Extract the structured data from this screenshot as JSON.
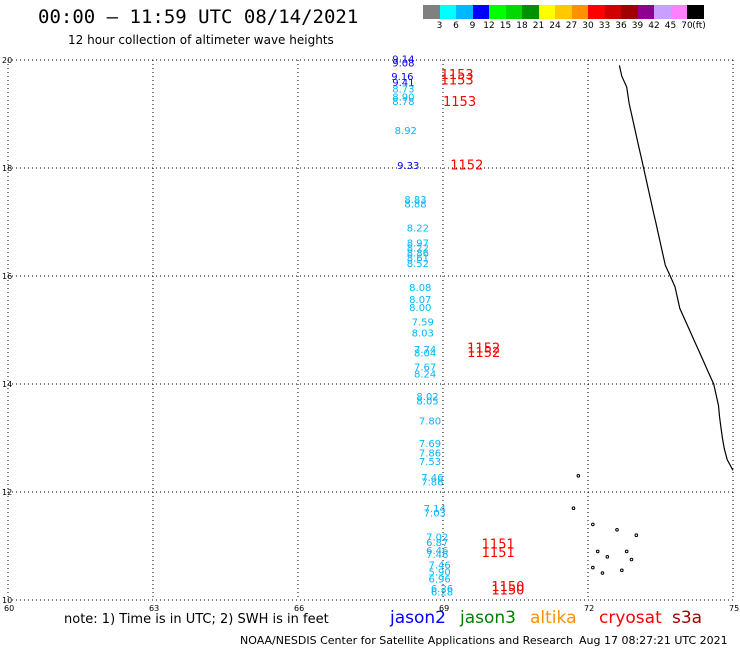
{
  "header": {
    "title": "00:00 – 11:59 UTC 08/14/2021",
    "subtitle": "12 hour collection of altimeter wave heights"
  },
  "legend": {
    "colors": [
      "#808080",
      "#00ffff",
      "#00b8ff",
      "#0000ff",
      "#00ff00",
      "#00d800",
      "#009000",
      "#ffff00",
      "#ffc800",
      "#ff9000",
      "#ff0000",
      "#d00000",
      "#a00000",
      "#900090",
      "#c8a0ff",
      "#ff80ff",
      "#000000"
    ],
    "labels": [
      "3",
      "6",
      "9",
      "12",
      "15",
      "18",
      "21",
      "24",
      "27",
      "30",
      "33",
      "36",
      "39",
      "42",
      "45",
      "70",
      "(ft)"
    ]
  },
  "axes": {
    "lat_labels": [
      "20",
      "18",
      "16",
      "14",
      "12",
      "10"
    ],
    "lon_labels": [
      "60",
      "63",
      "66",
      "69",
      "72",
      "75"
    ]
  },
  "chart_data": {
    "type": "scatter",
    "xlabel": "",
    "ylabel": "",
    "xlim": [
      60,
      75
    ],
    "ylim": [
      10,
      20
    ],
    "grid": true,
    "wave_heights": [
      {
        "lon": 67.95,
        "lat": 19.95,
        "value": "9.14",
        "color": "#0000ff"
      },
      {
        "lon": 67.95,
        "lat": 19.88,
        "value": "9.08",
        "color": "#0000ff"
      },
      {
        "lon": 67.93,
        "lat": 19.63,
        "value": "9.16",
        "color": "#0000ff"
      },
      {
        "lon": 67.95,
        "lat": 19.52,
        "value": "9.41",
        "color": "#0000ff"
      },
      {
        "lon": 67.95,
        "lat": 19.4,
        "value": "8.73",
        "color": "#00b8ff"
      },
      {
        "lon": 67.95,
        "lat": 19.25,
        "value": "8.90",
        "color": "#00b8ff"
      },
      {
        "lon": 67.95,
        "lat": 19.17,
        "value": "8.78",
        "color": "#00b8ff"
      },
      {
        "lon": 68.0,
        "lat": 18.63,
        "value": "8.92",
        "color": "#00b8ff"
      },
      {
        "lon": 68.05,
        "lat": 17.98,
        "value": "9.33",
        "color": "#0000ff"
      },
      {
        "lon": 68.2,
        "lat": 17.35,
        "value": "8.83",
        "color": "#00b8ff"
      },
      {
        "lon": 68.2,
        "lat": 17.27,
        "value": "8.88",
        "color": "#00b8ff"
      },
      {
        "lon": 68.25,
        "lat": 16.82,
        "value": "8.22",
        "color": "#00b8ff"
      },
      {
        "lon": 68.25,
        "lat": 16.55,
        "value": "8.97",
        "color": "#00b8ff"
      },
      {
        "lon": 68.25,
        "lat": 16.45,
        "value": "8.22",
        "color": "#00b8ff"
      },
      {
        "lon": 68.25,
        "lat": 16.36,
        "value": "8.86",
        "color": "#00b8ff"
      },
      {
        "lon": 68.25,
        "lat": 16.27,
        "value": "8.61",
        "color": "#00b8ff"
      },
      {
        "lon": 68.25,
        "lat": 16.17,
        "value": "8.52",
        "color": "#00b8ff"
      },
      {
        "lon": 68.3,
        "lat": 15.72,
        "value": "8.08",
        "color": "#00b8ff"
      },
      {
        "lon": 68.3,
        "lat": 15.5,
        "value": "8.07",
        "color": "#00b8ff"
      },
      {
        "lon": 68.3,
        "lat": 15.35,
        "value": "8.00",
        "color": "#00b8ff"
      },
      {
        "lon": 68.35,
        "lat": 15.08,
        "value": "7.59",
        "color": "#00b8ff"
      },
      {
        "lon": 68.35,
        "lat": 14.88,
        "value": "8.03",
        "color": "#00b8ff"
      },
      {
        "lon": 68.4,
        "lat": 14.57,
        "value": "7.74",
        "color": "#00b8ff"
      },
      {
        "lon": 68.4,
        "lat": 14.51,
        "value": "8.04",
        "color": "#00b8ff"
      },
      {
        "lon": 68.4,
        "lat": 14.25,
        "value": "7.67",
        "color": "#00b8ff"
      },
      {
        "lon": 68.4,
        "lat": 14.12,
        "value": "8.24",
        "color": "#00b8ff"
      },
      {
        "lon": 68.45,
        "lat": 13.7,
        "value": "8.02",
        "color": "#00b8ff"
      },
      {
        "lon": 68.45,
        "lat": 13.62,
        "value": "8.05",
        "color": "#00b8ff"
      },
      {
        "lon": 68.5,
        "lat": 13.25,
        "value": "7.80",
        "color": "#00b8ff"
      },
      {
        "lon": 68.5,
        "lat": 12.83,
        "value": "7.69",
        "color": "#00b8ff"
      },
      {
        "lon": 68.5,
        "lat": 12.66,
        "value": "7.86",
        "color": "#00b8ff"
      },
      {
        "lon": 68.5,
        "lat": 12.5,
        "value": "7.53",
        "color": "#00b8ff"
      },
      {
        "lon": 68.55,
        "lat": 12.2,
        "value": "7.46",
        "color": "#00b8ff"
      },
      {
        "lon": 68.55,
        "lat": 12.12,
        "value": "7.86",
        "color": "#00b8ff"
      },
      {
        "lon": 68.6,
        "lat": 11.63,
        "value": "7.14",
        "color": "#00b8ff"
      },
      {
        "lon": 68.6,
        "lat": 11.55,
        "value": "7.03",
        "color": "#00b8ff"
      },
      {
        "lon": 68.65,
        "lat": 11.1,
        "value": "7.02",
        "color": "#00b8ff"
      },
      {
        "lon": 68.65,
        "lat": 11.0,
        "value": "6.87",
        "color": "#00b8ff"
      },
      {
        "lon": 68.65,
        "lat": 10.85,
        "value": "6.46",
        "color": "#00b8ff"
      },
      {
        "lon": 68.65,
        "lat": 10.78,
        "value": "7.46",
        "color": "#00b8ff"
      },
      {
        "lon": 68.7,
        "lat": 10.58,
        "value": "7.46",
        "color": "#00b8ff"
      },
      {
        "lon": 68.7,
        "lat": 10.45,
        "value": "5.90",
        "color": "#00b8ff"
      },
      {
        "lon": 68.7,
        "lat": 10.32,
        "value": "6.96",
        "color": "#00b8ff"
      },
      {
        "lon": 68.75,
        "lat": 10.15,
        "value": "6.26",
        "color": "#00b8ff"
      },
      {
        "lon": 68.75,
        "lat": 10.08,
        "value": "6.28",
        "color": "#00b8ff"
      }
    ],
    "pass_times": [
      {
        "lon": 68.95,
        "lat": 19.65,
        "value": "1153",
        "color": "#ff0000"
      },
      {
        "lon": 68.95,
        "lat": 19.55,
        "value": "1153",
        "color": "#ff0000"
      },
      {
        "lon": 69.0,
        "lat": 19.15,
        "value": "1153",
        "color": "#ff0000"
      },
      {
        "lon": 69.15,
        "lat": 17.97,
        "value": "1152",
        "color": "#ff0000"
      },
      {
        "lon": 69.5,
        "lat": 14.58,
        "value": "1152",
        "color": "#ff0000"
      },
      {
        "lon": 69.5,
        "lat": 14.5,
        "value": "1152",
        "color": "#ff0000"
      },
      {
        "lon": 69.8,
        "lat": 10.95,
        "value": "1151",
        "color": "#ff0000"
      },
      {
        "lon": 69.8,
        "lat": 10.8,
        "value": "1151",
        "color": "#ff0000"
      },
      {
        "lon": 70.0,
        "lat": 10.17,
        "value": "1150",
        "color": "#ff0000"
      },
      {
        "lon": 70.0,
        "lat": 10.1,
        "value": "1150",
        "color": "#ff0000"
      }
    ]
  },
  "footer": {
    "note": "note: 1) Time is in UTC; 2) SWH is in feet",
    "satellites": [
      {
        "name": "jason2",
        "color": "#0000ff"
      },
      {
        "name": "jason3",
        "color": "#008000"
      },
      {
        "name": "altika",
        "color": "#ff9000"
      },
      {
        "name": "cryosat",
        "color": "#ff0000"
      },
      {
        "name": "s3a",
        "color": "#a00000"
      }
    ],
    "credit": "NOAA/NESDIS Center for Satellite Applications and Research",
    "generated": "Aug 17 08:27:21 UTC 2021"
  }
}
